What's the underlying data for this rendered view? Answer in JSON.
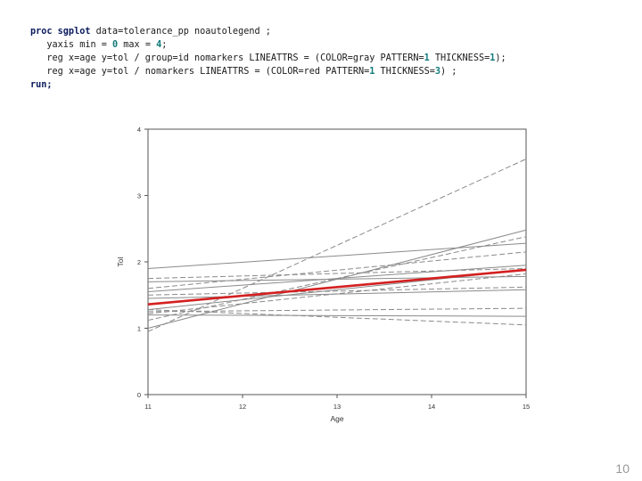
{
  "code": {
    "lines": [
      [
        {
          "t": "proc sgplot",
          "c": "kw"
        },
        {
          "t": " data=tolerance_pp noautolegend ;"
        }
      ],
      [
        {
          "t": "   yaxis min = "
        },
        {
          "t": "0",
          "c": "num"
        },
        {
          "t": " max = "
        },
        {
          "t": "4",
          "c": "num"
        },
        {
          "t": ";"
        }
      ],
      [
        {
          "t": "   reg x=age y=tol / group=id nomarkers LINEATTRS = (COLOR=gray PATTERN="
        },
        {
          "t": "1",
          "c": "num"
        },
        {
          "t": " THICKNESS="
        },
        {
          "t": "1",
          "c": "num"
        },
        {
          "t": ");"
        }
      ],
      [
        {
          "t": "   reg x=age y=tol / nomarkers LINEATTRS = (COLOR=red PATTERN="
        },
        {
          "t": "1",
          "c": "num"
        },
        {
          "t": " THICKNESS="
        },
        {
          "t": "3",
          "c": "num"
        },
        {
          "t": ") ;"
        }
      ],
      [
        {
          "t": "run;",
          "c": "kw"
        }
      ]
    ]
  },
  "chart_data": {
    "type": "line",
    "title": "",
    "xlabel": "Age",
    "ylabel": "Tol",
    "xlim": [
      11,
      15
    ],
    "ylim": [
      0,
      4
    ],
    "xticks": [
      11,
      12,
      13,
      14,
      15
    ],
    "yticks": [
      0,
      1,
      2,
      3,
      4
    ],
    "x": [
      11,
      15
    ],
    "individual_color": "#8a8a8a",
    "average_color": "#d42020",
    "series": [
      {
        "values": [
          0.95,
          3.55
        ]
      },
      {
        "values": [
          1.0,
          2.48
        ]
      },
      {
        "values": [
          1.12,
          2.38
        ]
      },
      {
        "values": [
          1.9,
          2.28
        ]
      },
      {
        "values": [
          1.6,
          2.15
        ]
      },
      {
        "values": [
          1.55,
          1.95
        ]
      },
      {
        "values": [
          1.75,
          1.9
        ]
      },
      {
        "values": [
          1.28,
          1.88
        ]
      },
      {
        "values": [
          1.22,
          1.82
        ]
      },
      {
        "values": [
          1.7,
          1.78
        ]
      },
      {
        "values": [
          1.5,
          1.62
        ]
      },
      {
        "values": [
          1.45,
          1.58
        ]
      },
      {
        "values": [
          1.25,
          1.3
        ]
      },
      {
        "values": [
          1.2,
          1.18
        ]
      },
      {
        "values": [
          1.28,
          1.05
        ]
      },
      {
        "values": [
          1.36,
          1.88
        ],
        "average": true
      }
    ]
  },
  "slide_number": "10"
}
